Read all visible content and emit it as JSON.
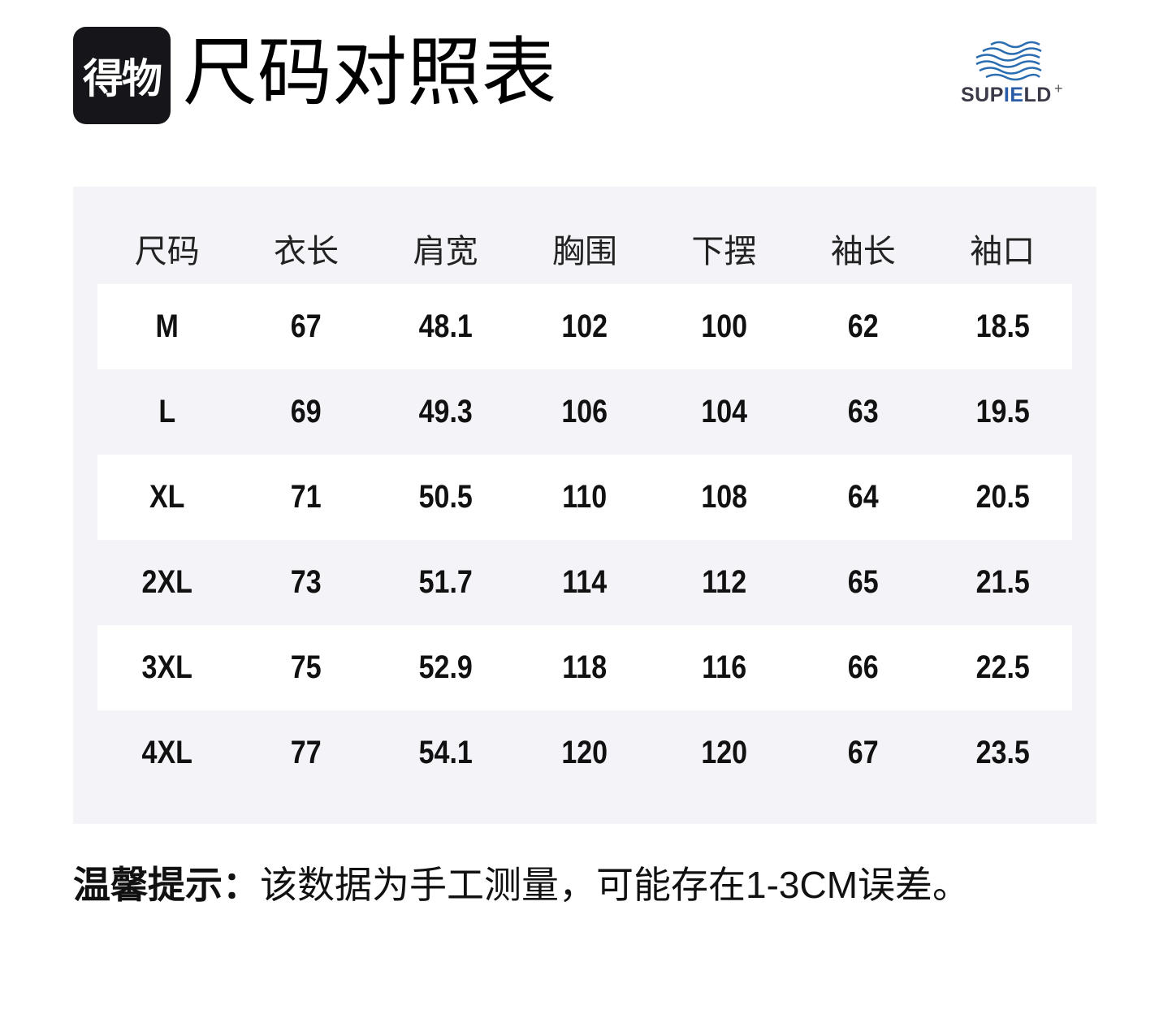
{
  "brand_badge": "得物",
  "title": "尺码对照表",
  "logo": {
    "text_a": "SUP",
    "text_b": "IE",
    "text_c": "LD",
    "plus": "+",
    "colors": {
      "wave": "#2a6db0",
      "text": "#3a3a48"
    }
  },
  "table": {
    "headers": [
      "尺码",
      "衣长",
      "肩宽",
      "胸围",
      "下摆",
      "袖长",
      "袖口"
    ],
    "rows": [
      [
        "M",
        "67",
        "48.1",
        "102",
        "100",
        "62",
        "18.5"
      ],
      [
        "L",
        "69",
        "49.3",
        "106",
        "104",
        "63",
        "19.5"
      ],
      [
        "XL",
        "71",
        "50.5",
        "110",
        "108",
        "64",
        "20.5"
      ],
      [
        "2XL",
        "73",
        "51.7",
        "114",
        "112",
        "65",
        "21.5"
      ],
      [
        "3XL",
        "75",
        "52.9",
        "118",
        "116",
        "66",
        "22.5"
      ],
      [
        "4XL",
        "77",
        "54.1",
        "120",
        "120",
        "67",
        "23.5"
      ]
    ]
  },
  "note": {
    "label": "温馨提示：",
    "text": "该数据为手工测量，可能存在1-3CM误差。"
  }
}
